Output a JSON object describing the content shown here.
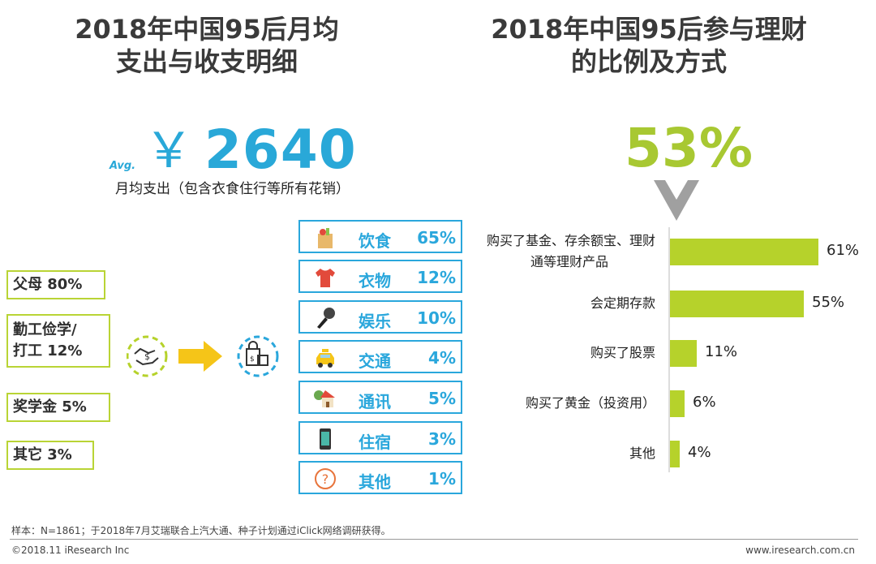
{
  "left_title": {
    "line1": "2018年中国95后月均",
    "line2": "支出与收支明细"
  },
  "right_title": {
    "line1": "2018年中国95后参与理财",
    "line2": "的比例及方式"
  },
  "spending": {
    "avg_label": "Avg.",
    "currency": "￥",
    "amount": "2640",
    "description": "月均支出（包含衣食住行等所有花销）"
  },
  "income_sources": [
    {
      "label": "父母 80%"
    },
    {
      "label": "勤工俭学/\n打工 12%"
    },
    {
      "label": "奖学金 5%"
    },
    {
      "label": "其它 3%"
    }
  ],
  "spending_categories": [
    {
      "label": "饮食",
      "pct": "65%",
      "icon": "grocery-bag-icon"
    },
    {
      "label": "衣物",
      "pct": "12%",
      "icon": "tshirt-icon"
    },
    {
      "label": "娱乐",
      "pct": "10%",
      "icon": "microphone-icon"
    },
    {
      "label": "交通",
      "pct": "4%",
      "icon": "taxi-icon"
    },
    {
      "label": "通讯",
      "pct": "5%",
      "icon": "house-icon"
    },
    {
      "label": "住宿",
      "pct": "3%",
      "icon": "phone-icon"
    },
    {
      "label": "其他",
      "pct": "1%",
      "icon": "question-icon"
    }
  ],
  "participation_rate": "53%",
  "chart_data": {
    "type": "bar",
    "orientation": "horizontal",
    "title": "2018年中国95后参与理财的比例及方式",
    "categories": [
      "购买了基金、存余额宝、理财通等理财产品",
      "会定期存款",
      "购买了股票",
      "购买了黄金（投资用）",
      "其他"
    ],
    "category_lines": [
      [
        "购买了基金、存余额宝、理财",
        "通等理财产品"
      ],
      [
        "会定期存款"
      ],
      [
        "购买了股票"
      ],
      [
        "购买了黄金（投资用）"
      ],
      [
        "其他"
      ]
    ],
    "values": [
      61,
      55,
      11,
      6,
      4
    ],
    "value_labels": [
      "61%",
      "55%",
      "11%",
      "6%",
      "4%"
    ],
    "xlim": [
      0,
      100
    ],
    "bar_color": "#b6d22b"
  },
  "colors": {
    "blue": "#2aa7dc",
    "green": "#b6d22b",
    "yellow": "#f5c518",
    "title": "#3a3a3a"
  },
  "footer": {
    "note": "样本：N=1861；于2018年7月艾瑞联合上汽大通、种子计划通过iClick网络调研获得。",
    "copyright": "©2018.11 iResearch Inc",
    "website": "www.iresearch.com.cn"
  }
}
